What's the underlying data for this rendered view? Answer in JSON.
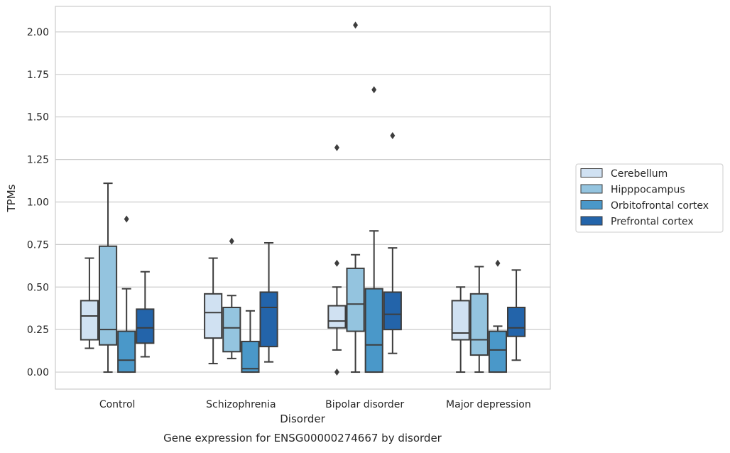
{
  "chart_data": {
    "type": "boxplot",
    "title": "",
    "caption": "Gene expression for ENSG00000274667 by disorder",
    "xlabel": "Disorder",
    "ylabel": "TPMs",
    "ylim": [
      -0.1,
      2.15
    ],
    "yticks": [
      "0.00",
      "0.25",
      "0.50",
      "0.75",
      "1.00",
      "1.25",
      "1.50",
      "1.75",
      "2.00"
    ],
    "grid": true,
    "legend_position": "right",
    "categories": [
      "Control",
      "Schizophrenia",
      "Bipolar disorder",
      "Major depression"
    ],
    "series": [
      {
        "name": "Cerebellum",
        "color": "#d0e1f2",
        "boxes": [
          {
            "whislo": 0.14,
            "q1": 0.19,
            "med": 0.33,
            "q3": 0.42,
            "whishi": 0.67,
            "fliers": []
          },
          {
            "whislo": 0.05,
            "q1": 0.2,
            "med": 0.35,
            "q3": 0.46,
            "whishi": 0.67,
            "fliers": []
          },
          {
            "whislo": 0.13,
            "q1": 0.26,
            "med": 0.3,
            "q3": 0.39,
            "whishi": 0.5,
            "fliers": [
              1.32,
              0.64,
              0.0
            ]
          },
          {
            "whislo": 0.0,
            "q1": 0.19,
            "med": 0.23,
            "q3": 0.42,
            "whishi": 0.5,
            "fliers": []
          }
        ]
      },
      {
        "name": "Hipppocampus",
        "color": "#94c4df",
        "boxes": [
          {
            "whislo": 0.0,
            "q1": 0.16,
            "med": 0.25,
            "q3": 0.74,
            "whishi": 1.11,
            "fliers": []
          },
          {
            "whislo": 0.08,
            "q1": 0.12,
            "med": 0.26,
            "q3": 0.38,
            "whishi": 0.45,
            "fliers": [
              0.77
            ]
          },
          {
            "whislo": 0.0,
            "q1": 0.24,
            "med": 0.4,
            "q3": 0.61,
            "whishi": 0.69,
            "fliers": [
              2.04
            ]
          },
          {
            "whislo": 0.0,
            "q1": 0.1,
            "med": 0.19,
            "q3": 0.46,
            "whishi": 0.62,
            "fliers": []
          }
        ]
      },
      {
        "name": "Orbitofrontal cortex",
        "color": "#4a98c9",
        "boxes": [
          {
            "whislo": 0.0,
            "q1": 0.0,
            "med": 0.07,
            "q3": 0.24,
            "whishi": 0.49,
            "fliers": [
              0.9
            ]
          },
          {
            "whislo": 0.0,
            "q1": 0.0,
            "med": 0.02,
            "q3": 0.18,
            "whishi": 0.36,
            "fliers": []
          },
          {
            "whislo": 0.0,
            "q1": 0.0,
            "med": 0.16,
            "q3": 0.49,
            "whishi": 0.83,
            "fliers": [
              1.66
            ]
          },
          {
            "whislo": 0.0,
            "q1": 0.0,
            "med": 0.13,
            "q3": 0.24,
            "whishi": 0.27,
            "fliers": [
              0.64
            ]
          }
        ]
      },
      {
        "name": "Prefrontal cortex",
        "color": "#2364aa",
        "boxes": [
          {
            "whislo": 0.09,
            "q1": 0.17,
            "med": 0.26,
            "q3": 0.37,
            "whishi": 0.59,
            "fliers": []
          },
          {
            "whislo": 0.06,
            "q1": 0.15,
            "med": 0.38,
            "q3": 0.47,
            "whishi": 0.76,
            "fliers": []
          },
          {
            "whislo": 0.11,
            "q1": 0.25,
            "med": 0.34,
            "q3": 0.47,
            "whishi": 0.73,
            "fliers": [
              1.39
            ]
          },
          {
            "whislo": 0.07,
            "q1": 0.21,
            "med": 0.26,
            "q3": 0.38,
            "whishi": 0.6,
            "fliers": []
          }
        ]
      }
    ]
  }
}
